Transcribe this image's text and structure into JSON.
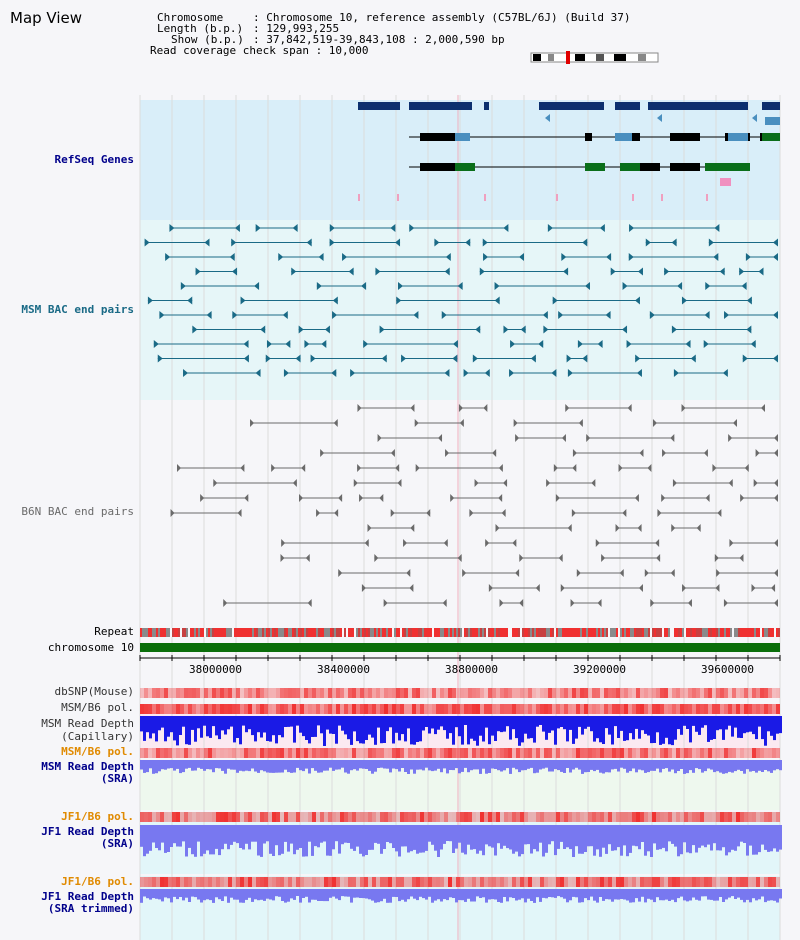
{
  "title": "Map View",
  "info": {
    "chromosome_key": "Chromosome",
    "chromosome_val": ": Chromosome 10, reference assembly (C57BL/6J) (Build 37)",
    "length_key": "Length (b.p.)",
    "length_val": ": 129,993,255",
    "show_key": "Show (b.p.)",
    "show_val": ": 37,842,519-39,843,108 : 2,000,590 bp",
    "coverage_text": "Read coverage check span : 10,000"
  },
  "tracks": {
    "refseq": "RefSeq Genes",
    "msm_bac": "MSM BAC end pairs",
    "b6n_bac": "B6N BAC end pairs",
    "repeat": "Repeat",
    "chromosome": "chromosome 10",
    "dbsnp": "dbSNP(Mouse)",
    "msm_b6_pol_1": "MSM/B6 pol.",
    "msm_depth_cap_1": "MSM Read Depth",
    "msm_depth_cap_2": "(Capillary)",
    "msm_b6_pol_2": "MSM/B6 pol.",
    "msm_depth_sra_1": "MSM Read Depth",
    "msm_depth_sra_2": "(SRA)",
    "jf1_b6_pol_1": "JF1/B6 pol.",
    "jf1_depth_sra_1": "JF1 Read Depth",
    "jf1_depth_sra_2": "(SRA)",
    "jf1_b6_pol_2": "JF1/B6 pol.",
    "jf1_depth_trim_1": "JF1 Read Depth",
    "jf1_depth_trim_2": "(SRA trimmed)"
  },
  "axis_ticks": [
    "38000000",
    "38400000",
    "38800000",
    "39200000",
    "39600000"
  ],
  "colors": {
    "refseq_dark": "#0d2f6e",
    "refseq_light": "#4a8fbf",
    "refseq_green": "#0a6e1a",
    "msm_bac": "#1a6a86",
    "b6n_bac": "#6a6a6a",
    "chromosome": "#0a6e0a",
    "snp_red": "#f03030",
    "depth_blue": "#1a1ae6",
    "depth_light": "#7878f0",
    "orange_label": "#e08a00",
    "navy_label": "#00008b"
  }
}
